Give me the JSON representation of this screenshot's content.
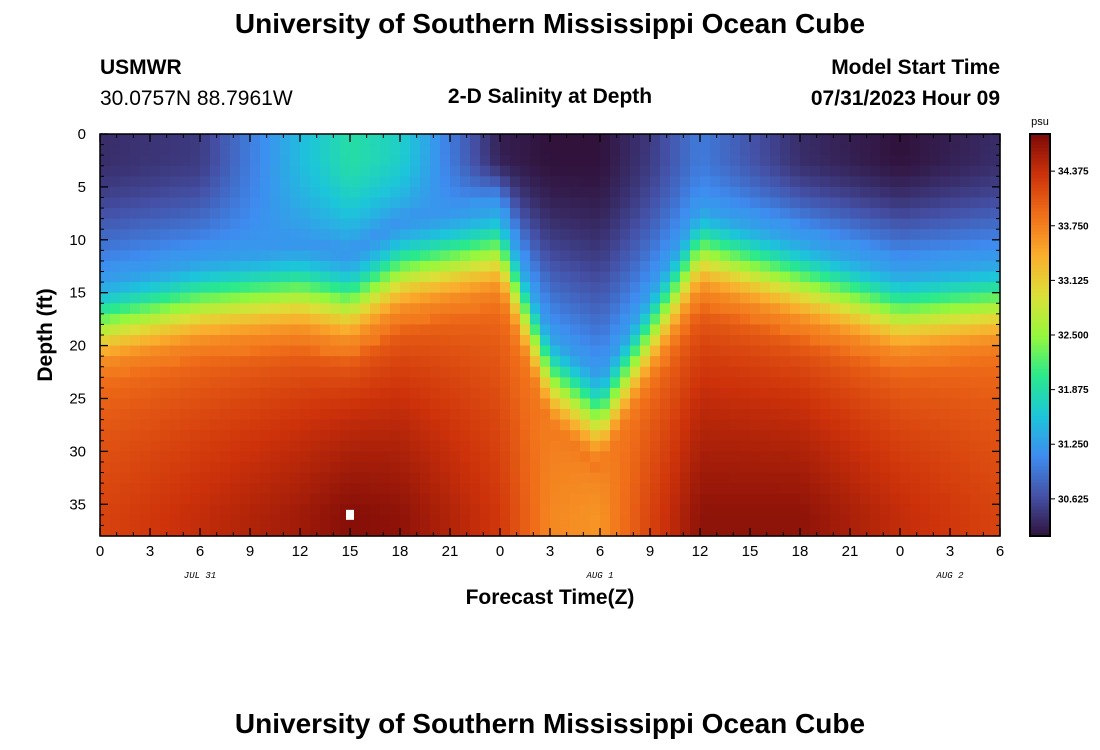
{
  "header": {
    "title": "University of Southern Mississippi Ocean Cube",
    "station": "USMWR",
    "coords": "30.0757N  88.7961W",
    "subtitle": "2-D Salinity at Depth",
    "model_label": "Model Start Time",
    "model_time": "07/31/2023 Hour 09"
  },
  "footer": {
    "title": "University of Southern Mississippi Ocean Cube"
  },
  "chart_data": {
    "type": "heatmap",
    "title": "2-D Salinity at Depth",
    "xlabel": "Forecast Time(Z)",
    "ylabel": "Depth (ft)",
    "x_tick_labels": [
      "0",
      "3",
      "6",
      "9",
      "12",
      "15",
      "18",
      "21",
      "0",
      "3",
      "6",
      "9",
      "12",
      "15",
      "18",
      "21",
      "0",
      "3",
      "6"
    ],
    "x_range_hours": [
      0,
      54
    ],
    "date_labels": [
      {
        "label": "JUL 31",
        "hour": 6
      },
      {
        "label": "AUG 1",
        "hour": 30
      },
      {
        "label": "AUG 2",
        "hour": 51
      }
    ],
    "y_ticks": [
      0,
      5,
      10,
      15,
      20,
      25,
      30,
      35
    ],
    "y_tick_labels": [
      "0",
      "5",
      "10",
      "15",
      "20",
      "25",
      "30",
      "35"
    ],
    "y_range": [
      0,
      38
    ],
    "colorbar": {
      "unit": "psu",
      "range": [
        30.2,
        34.8
      ],
      "tick_labels": [
        "34.375",
        "33.750",
        "33.125",
        "32.500",
        "31.875",
        "31.250",
        "30.625"
      ],
      "tick_values": [
        34.375,
        33.75,
        33.125,
        32.5,
        31.875,
        31.25,
        30.625
      ]
    },
    "salinity_surface": {
      "description": "Halocline depth (ft) per forecast hour; fresher water above, saltier below",
      "hours": [
        0,
        6,
        12,
        15,
        18,
        24,
        27,
        30,
        33,
        36,
        42,
        48,
        54
      ],
      "halocline_depth_ft": [
        19,
        17,
        16,
        17,
        14,
        12,
        24,
        28,
        20,
        12,
        15,
        18,
        17
      ],
      "surface_min_psu": [
        30.4,
        30.5,
        31.5,
        31.9,
        31.7,
        30.3,
        30.2,
        30.2,
        30.5,
        31.0,
        30.4,
        30.2,
        30.4
      ],
      "bottom_max_psu": [
        34.2,
        34.4,
        34.6,
        34.75,
        34.7,
        34.3,
        33.7,
        33.6,
        34.2,
        34.7,
        34.7,
        34.4,
        34.2
      ]
    },
    "marker": {
      "hour": 15,
      "depth_ft": 36
    }
  }
}
